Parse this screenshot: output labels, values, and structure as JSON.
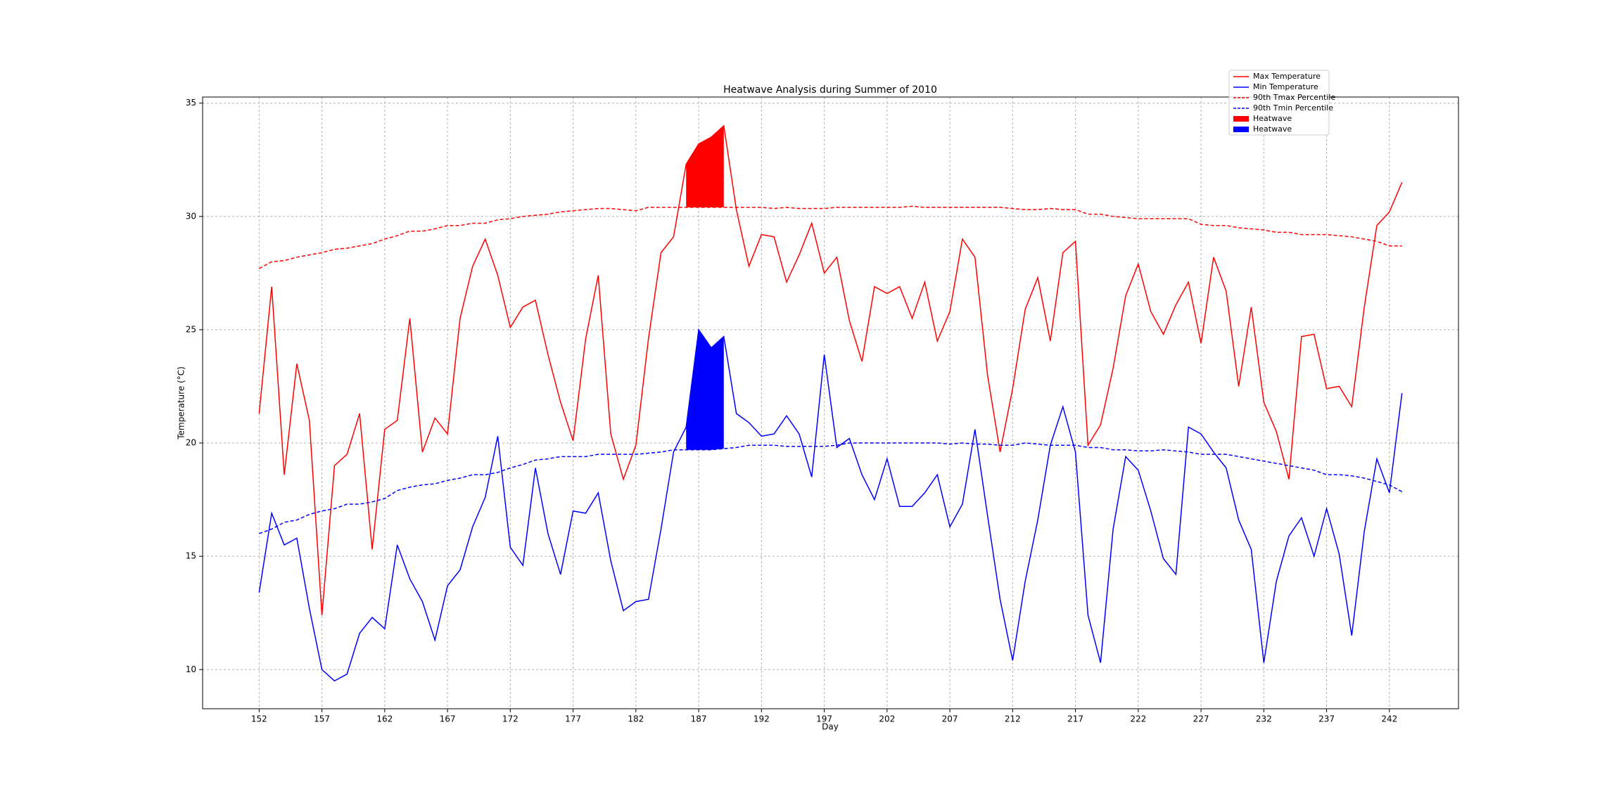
{
  "chart_data": {
    "type": "line",
    "title": "Heatwave Analysis during Summer of 2010",
    "xlabel": "Day",
    "ylabel": "Temperature (°C)",
    "x": [
      152,
      153,
      154,
      155,
      156,
      157,
      158,
      159,
      160,
      161,
      162,
      163,
      164,
      165,
      166,
      167,
      168,
      169,
      170,
      171,
      172,
      173,
      174,
      175,
      176,
      177,
      178,
      179,
      180,
      181,
      182,
      183,
      184,
      185,
      186,
      187,
      188,
      189,
      190,
      191,
      192,
      193,
      194,
      195,
      196,
      197,
      198,
      199,
      200,
      201,
      202,
      203,
      204,
      205,
      206,
      207,
      208,
      209,
      210,
      211,
      212,
      213,
      214,
      215,
      216,
      217,
      218,
      219,
      220,
      221,
      222,
      223,
      224,
      225,
      226,
      227,
      228,
      229,
      230,
      231,
      232,
      233,
      234,
      235,
      236,
      237,
      238,
      239,
      240,
      241,
      242,
      243
    ],
    "series": [
      {
        "name": "Max Temperature",
        "color": "#ff0000",
        "linestyle": "solid",
        "values": [
          21.3,
          26.9,
          18.6,
          23.5,
          21.0,
          12.4,
          19.0,
          19.5,
          21.3,
          15.3,
          20.6,
          21.0,
          25.5,
          19.6,
          21.1,
          20.4,
          25.5,
          27.8,
          29.0,
          27.4,
          25.1,
          26.0,
          26.3,
          23.9,
          21.8,
          20.1,
          24.6,
          27.4,
          20.4,
          18.4,
          19.9,
          24.6,
          28.4,
          29.1,
          32.3,
          33.2,
          33.5,
          34.0,
          30.3,
          27.8,
          29.2,
          29.1,
          27.1,
          28.3,
          29.7,
          27.5,
          28.2,
          25.4,
          23.6,
          26.9,
          26.6,
          26.9,
          25.5,
          27.1,
          24.5,
          25.8,
          29.0,
          28.2,
          23.0,
          19.6,
          22.4,
          25.9,
          27.3,
          24.5,
          28.4,
          28.9,
          19.9,
          20.8,
          23.3,
          26.5,
          27.9,
          25.8,
          24.8,
          26.1,
          27.1,
          24.4,
          28.2,
          26.7,
          22.5,
          26.0,
          21.8,
          20.5,
          18.4,
          24.7,
          24.8,
          22.4,
          22.5,
          21.6,
          26.0,
          29.6,
          30.2,
          31.5
        ]
      },
      {
        "name": "Min Temperature",
        "color": "#0000ff",
        "linestyle": "solid",
        "values": [
          13.4,
          16.9,
          15.5,
          15.8,
          12.7,
          10.0,
          9.5,
          9.8,
          11.6,
          12.3,
          11.8,
          15.5,
          14.0,
          13.0,
          11.3,
          13.7,
          14.4,
          16.3,
          17.6,
          20.3,
          15.4,
          14.6,
          18.9,
          16.0,
          14.2,
          17.0,
          16.9,
          17.8,
          14.8,
          12.6,
          13.0,
          13.1,
          16.2,
          19.6,
          20.7,
          25.0,
          24.2,
          24.7,
          21.3,
          20.9,
          20.3,
          20.4,
          21.2,
          20.4,
          18.5,
          23.9,
          19.8,
          20.2,
          18.6,
          17.5,
          19.3,
          17.2,
          17.2,
          17.8,
          18.6,
          16.3,
          17.3,
          20.6,
          16.8,
          13.1,
          10.4,
          13.9,
          16.6,
          19.9,
          21.6,
          19.6,
          12.4,
          10.3,
          16.2,
          19.4,
          18.8,
          17.0,
          14.9,
          14.2,
          20.7,
          20.4,
          19.6,
          18.9,
          16.6,
          15.3,
          10.3,
          13.9,
          15.9,
          16.7,
          15.0,
          17.1,
          15.1,
          11.5,
          16.1,
          19.3,
          17.8,
          22.2
        ]
      },
      {
        "name": "90th Tmax Percentile",
        "color": "#ff0000",
        "linestyle": "dashed",
        "values": [
          27.7,
          28.0,
          28.05,
          28.2,
          28.3,
          28.4,
          28.55,
          28.6,
          28.7,
          28.8,
          29.0,
          29.15,
          29.35,
          29.35,
          29.45,
          29.6,
          29.6,
          29.7,
          29.7,
          29.85,
          29.9,
          30.0,
          30.05,
          30.1,
          30.2,
          30.25,
          30.3,
          30.35,
          30.35,
          30.3,
          30.25,
          30.4,
          30.4,
          30.4,
          30.4,
          30.4,
          30.4,
          30.4,
          30.4,
          30.4,
          30.4,
          30.35,
          30.4,
          30.35,
          30.35,
          30.35,
          30.4,
          30.4,
          30.4,
          30.4,
          30.4,
          30.4,
          30.45,
          30.4,
          30.4,
          30.4,
          30.4,
          30.4,
          30.4,
          30.4,
          30.35,
          30.3,
          30.3,
          30.35,
          30.3,
          30.3,
          30.1,
          30.1,
          30.0,
          29.95,
          29.9,
          29.9,
          29.9,
          29.9,
          29.9,
          29.65,
          29.6,
          29.6,
          29.5,
          29.45,
          29.4,
          29.3,
          29.3,
          29.2,
          29.2,
          29.2,
          29.15,
          29.1,
          29.0,
          28.9,
          28.7,
          28.7
        ]
      },
      {
        "name": "90th Tmin Percentile",
        "color": "#0000ff",
        "linestyle": "dashed",
        "values": [
          16.0,
          16.2,
          16.5,
          16.6,
          16.85,
          17.0,
          17.1,
          17.3,
          17.3,
          17.4,
          17.55,
          17.9,
          18.05,
          18.15,
          18.2,
          18.35,
          18.45,
          18.6,
          18.6,
          18.7,
          18.9,
          19.05,
          19.25,
          19.3,
          19.4,
          19.4,
          19.4,
          19.5,
          19.5,
          19.5,
          19.5,
          19.55,
          19.6,
          19.7,
          19.7,
          19.7,
          19.7,
          19.75,
          19.8,
          19.9,
          19.9,
          19.9,
          19.85,
          19.85,
          19.85,
          19.85,
          19.9,
          20.0,
          20.0,
          20.0,
          20.0,
          20.0,
          20.0,
          20.0,
          20.0,
          19.95,
          20.0,
          19.95,
          19.95,
          19.9,
          19.9,
          20.0,
          19.95,
          19.9,
          19.9,
          19.9,
          19.8,
          19.8,
          19.7,
          19.7,
          19.65,
          19.65,
          19.7,
          19.65,
          19.6,
          19.5,
          19.5,
          19.5,
          19.4,
          19.3,
          19.2,
          19.1,
          19.0,
          18.9,
          18.8,
          18.6,
          18.6,
          18.55,
          18.45,
          18.3,
          18.15,
          17.85
        ]
      },
      {
        "name": "Heatwave",
        "color": "#ff0000",
        "linestyle": "fill",
        "x": [
          186,
          187,
          188,
          189
        ],
        "values": [
          32.3,
          33.2,
          33.5,
          34.0
        ],
        "base": [
          30.4,
          30.4,
          30.4,
          30.4
        ]
      },
      {
        "name": "Heatwave",
        "color": "#0000ff",
        "linestyle": "fill",
        "x": [
          186,
          187,
          188,
          189
        ],
        "values": [
          20.7,
          25.0,
          24.2,
          24.7
        ],
        "base": [
          19.7,
          19.7,
          19.7,
          19.75
        ]
      }
    ],
    "xlim": [
      147.5,
      247.5
    ],
    "ylim": [
      8.27,
      35.27
    ],
    "xticks": [
      152,
      157,
      162,
      167,
      172,
      177,
      182,
      187,
      192,
      197,
      202,
      207,
      212,
      217,
      222,
      227,
      232,
      237,
      242
    ],
    "yticks": [
      10,
      15,
      20,
      25,
      30,
      35
    ],
    "grid": true,
    "legend": "upper right"
  }
}
